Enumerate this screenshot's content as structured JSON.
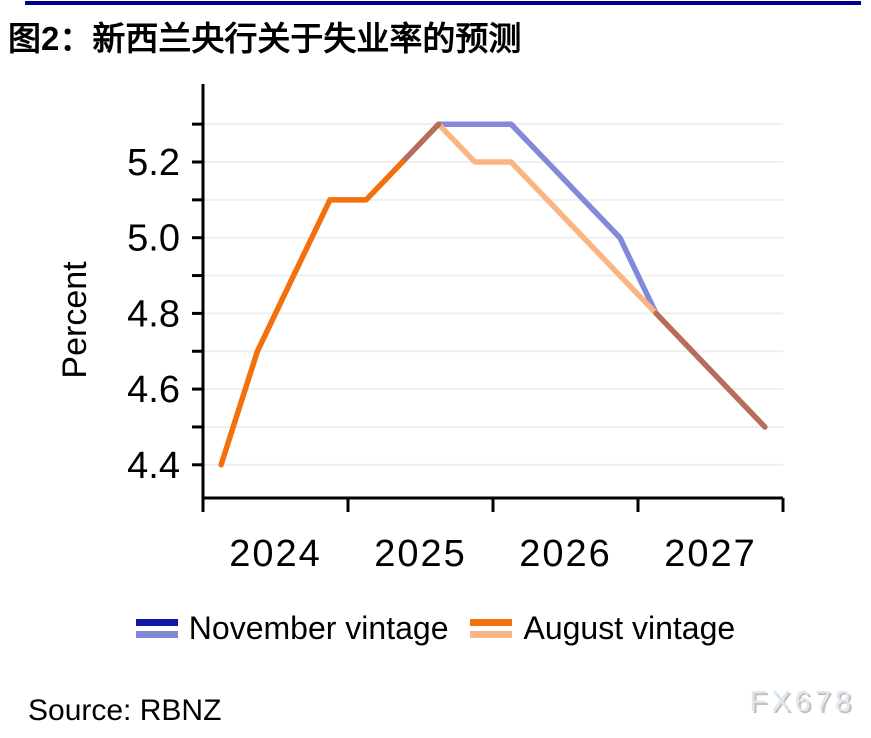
{
  "page": {
    "title": "图2：新西兰央行关于失业率的预测",
    "accent_color": "#00008F",
    "source": "Source: RBNZ",
    "watermark": "FX678"
  },
  "legend": {
    "items": [
      {
        "label": "November vintage",
        "swatch_top": "november_actual",
        "swatch_bottom": "november_forecast"
      },
      {
        "label": "August vintage",
        "swatch_top": "august_actual",
        "swatch_bottom": "august_forecast"
      }
    ]
  },
  "chart_data": {
    "type": "line",
    "title": "图2：新西兰央行关于失业率的预测",
    "xlabel": "",
    "ylabel": "Percent",
    "frequency": "quarterly",
    "x_quarters": [
      "2024Q1",
      "2024Q2",
      "2024Q3",
      "2024Q4",
      "2025Q1",
      "2025Q2",
      "2025Q3",
      "2025Q4",
      "2026Q1",
      "2026Q2",
      "2026Q3",
      "2026Q4",
      "2027Q1",
      "2027Q2",
      "2027Q3",
      "2027Q4"
    ],
    "x_tick_labels": [
      "2024",
      "2025",
      "2026",
      "2027"
    ],
    "y_ticks": [
      4.4,
      4.5,
      4.6,
      4.7,
      4.8,
      4.9,
      5.0,
      5.1,
      5.2,
      5.3
    ],
    "y_labeled_ticks": [
      4.4,
      4.6,
      4.8,
      5.0,
      5.2
    ],
    "ylim": [
      4.31,
      5.4
    ],
    "grid": true,
    "legend_position": "bottom",
    "series": [
      {
        "name": "November vintage",
        "values": [
          4.4,
          4.7,
          4.9,
          5.1,
          5.1,
          5.2,
          5.3,
          5.3,
          5.3,
          5.2,
          5.1,
          5.0,
          4.8,
          4.7,
          4.6,
          4.5
        ]
      },
      {
        "name": "August vintage",
        "values": [
          4.4,
          4.7,
          4.9,
          5.1,
          5.1,
          5.2,
          5.3,
          5.2,
          5.2,
          5.1,
          5.0,
          4.9,
          4.8,
          4.7,
          4.6,
          4.5
        ]
      }
    ],
    "colors": {
      "november_actual": "#1016A8",
      "november_forecast": "#8289D8",
      "august_actual": "#F4700E",
      "august_forecast": "#FBB584",
      "overlap": "#B66E5B",
      "grid": "#EFEFEF",
      "axis": "#000000"
    },
    "segments": [
      {
        "series": 0,
        "from": 6,
        "to": 12,
        "color_key": "november_forecast"
      },
      {
        "series": 1,
        "from": 6,
        "to": 12,
        "color_key": "august_forecast"
      },
      {
        "series": 0,
        "from": 5,
        "to": 6,
        "color_key": "overlap"
      },
      {
        "series": 0,
        "from": 12,
        "to": 15,
        "color_key": "overlap"
      },
      {
        "series": 1,
        "from": 0,
        "to": 5,
        "color_key": "august_actual"
      }
    ]
  }
}
